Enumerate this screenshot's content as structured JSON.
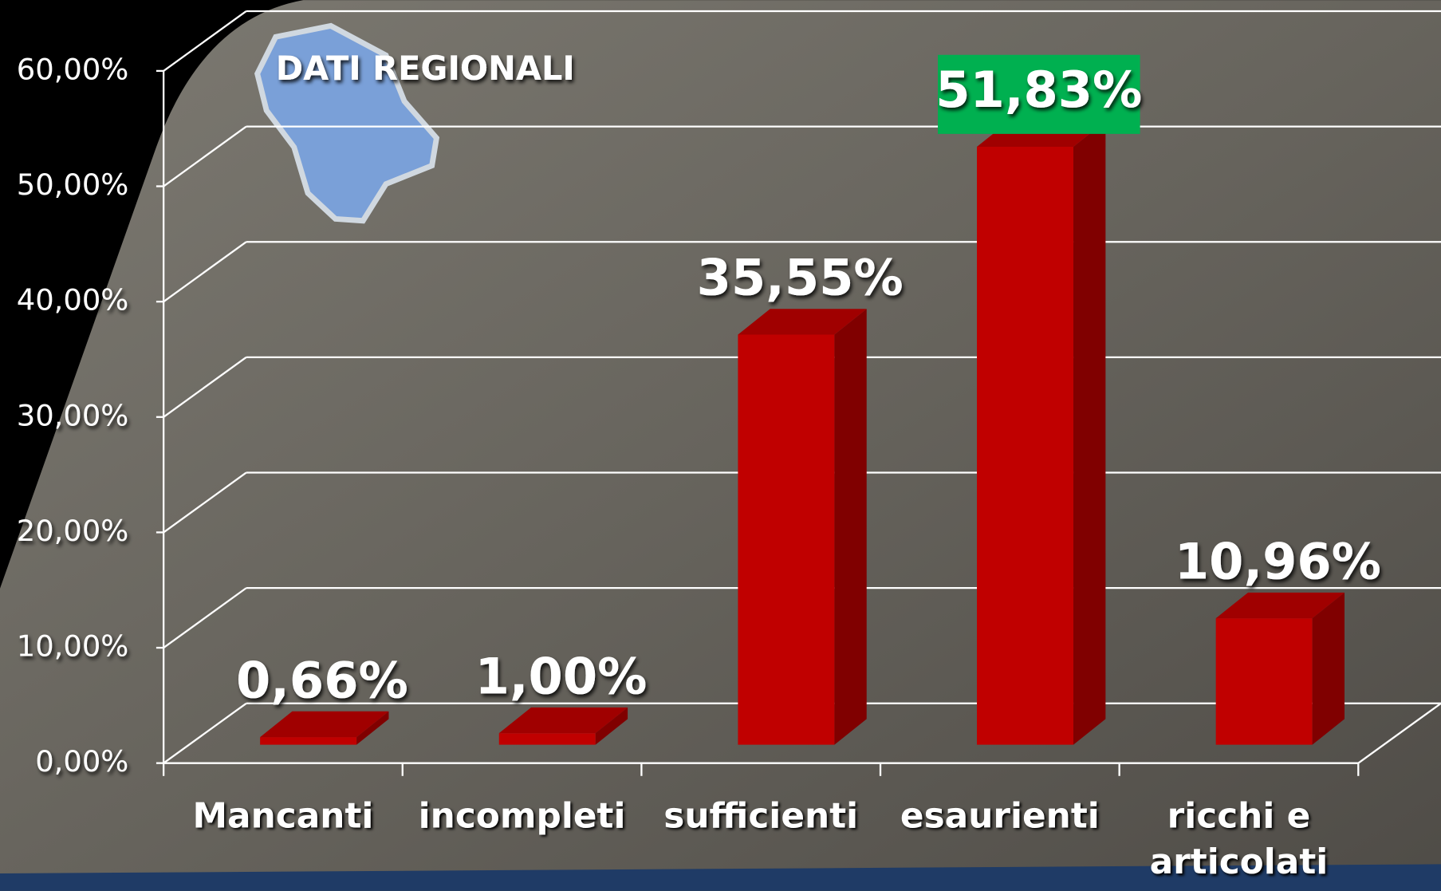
{
  "chart_data": {
    "type": "bar3d",
    "title": "DATI REGIONALI",
    "categories": [
      "Mancanti",
      "incompleti",
      "sufficienti",
      "esaurienti",
      "ricchi e articolati"
    ],
    "values": [
      0.66,
      1.0,
      35.55,
      51.83,
      10.96
    ],
    "value_labels": [
      "0,66%",
      "1,00%",
      "35,55%",
      "51,83%",
      "10,96%"
    ],
    "value_label_backgrounds": [
      null,
      null,
      null,
      "#00b050",
      null
    ],
    "color": "#c00000",
    "ylim": [
      0,
      60
    ],
    "yticks": [
      {
        "value": 0,
        "label": "0,00%"
      },
      {
        "value": 10,
        "label": "10,00%"
      },
      {
        "value": 20,
        "label": "20,00%"
      },
      {
        "value": 30,
        "label": "30,00%"
      },
      {
        "value": 40,
        "label": "40,00%"
      },
      {
        "value": 50,
        "label": "50,00%"
      },
      {
        "value": 60,
        "label": "60,00%"
      }
    ],
    "grid": true
  }
}
